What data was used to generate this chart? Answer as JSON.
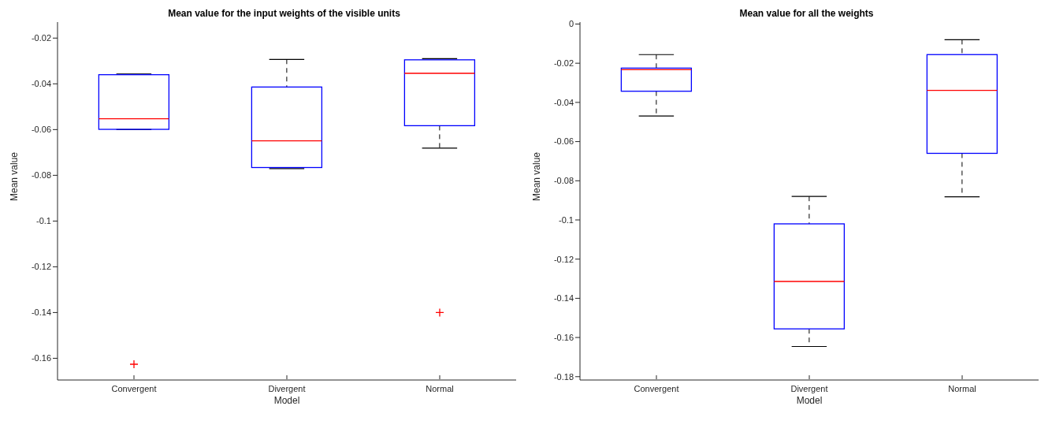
{
  "chart_data": [
    {
      "type": "box",
      "title": "Mean value for the input weights of the visible units",
      "xlabel": "Model",
      "ylabel": "Mean value",
      "categories": [
        "Convergent",
        "Divergent",
        "Normal"
      ],
      "ylim": [
        -0.1695,
        -0.013
      ],
      "yticks": [
        -0.16,
        -0.14,
        -0.12,
        -0.1,
        -0.08,
        -0.06,
        -0.04,
        -0.02
      ],
      "grid": false,
      "legend": false,
      "series": [
        {
          "color": "#0000ff",
          "boxes": [
            {
              "low": -0.06,
              "q1": -0.0599,
              "median": -0.0553,
              "q3": -0.036,
              "high": -0.0357,
              "outliers": [
                -0.1626
              ]
            },
            {
              "low": -0.0771,
              "q1": -0.0766,
              "median": -0.0649,
              "q3": -0.0414,
              "high": -0.0293
            },
            {
              "low": -0.0681,
              "q1": -0.0583,
              "median": -0.0354,
              "q3": -0.0295,
              "high": -0.029,
              "outliers": [
                -0.14
              ]
            }
          ]
        }
      ]
    },
    {
      "type": "box",
      "title": "Mean value for all the weights",
      "xlabel": "Model",
      "ylabel": "Mean value",
      "categories": [
        "Convergent",
        "Divergent",
        "Normal"
      ],
      "ylim": [
        -0.1817,
        0.001
      ],
      "yticks": [
        -0.18,
        -0.16,
        -0.14,
        -0.12,
        -0.1,
        -0.08,
        -0.06,
        -0.04,
        -0.02,
        0
      ],
      "grid": false,
      "legend": false,
      "series": [
        {
          "color": "#0000ff",
          "boxes": [
            {
              "low": -0.0469,
              "q1": -0.0343,
              "median": -0.0233,
              "q3": -0.0225,
              "high": -0.0156
            },
            {
              "low": -0.1646,
              "q1": -0.1556,
              "median": -0.1314,
              "q3": -0.102,
              "high": -0.088
            },
            {
              "low": -0.0882,
              "q1": -0.066,
              "median": -0.0339,
              "q3": -0.0156,
              "high": -0.008
            }
          ]
        }
      ]
    }
  ]
}
